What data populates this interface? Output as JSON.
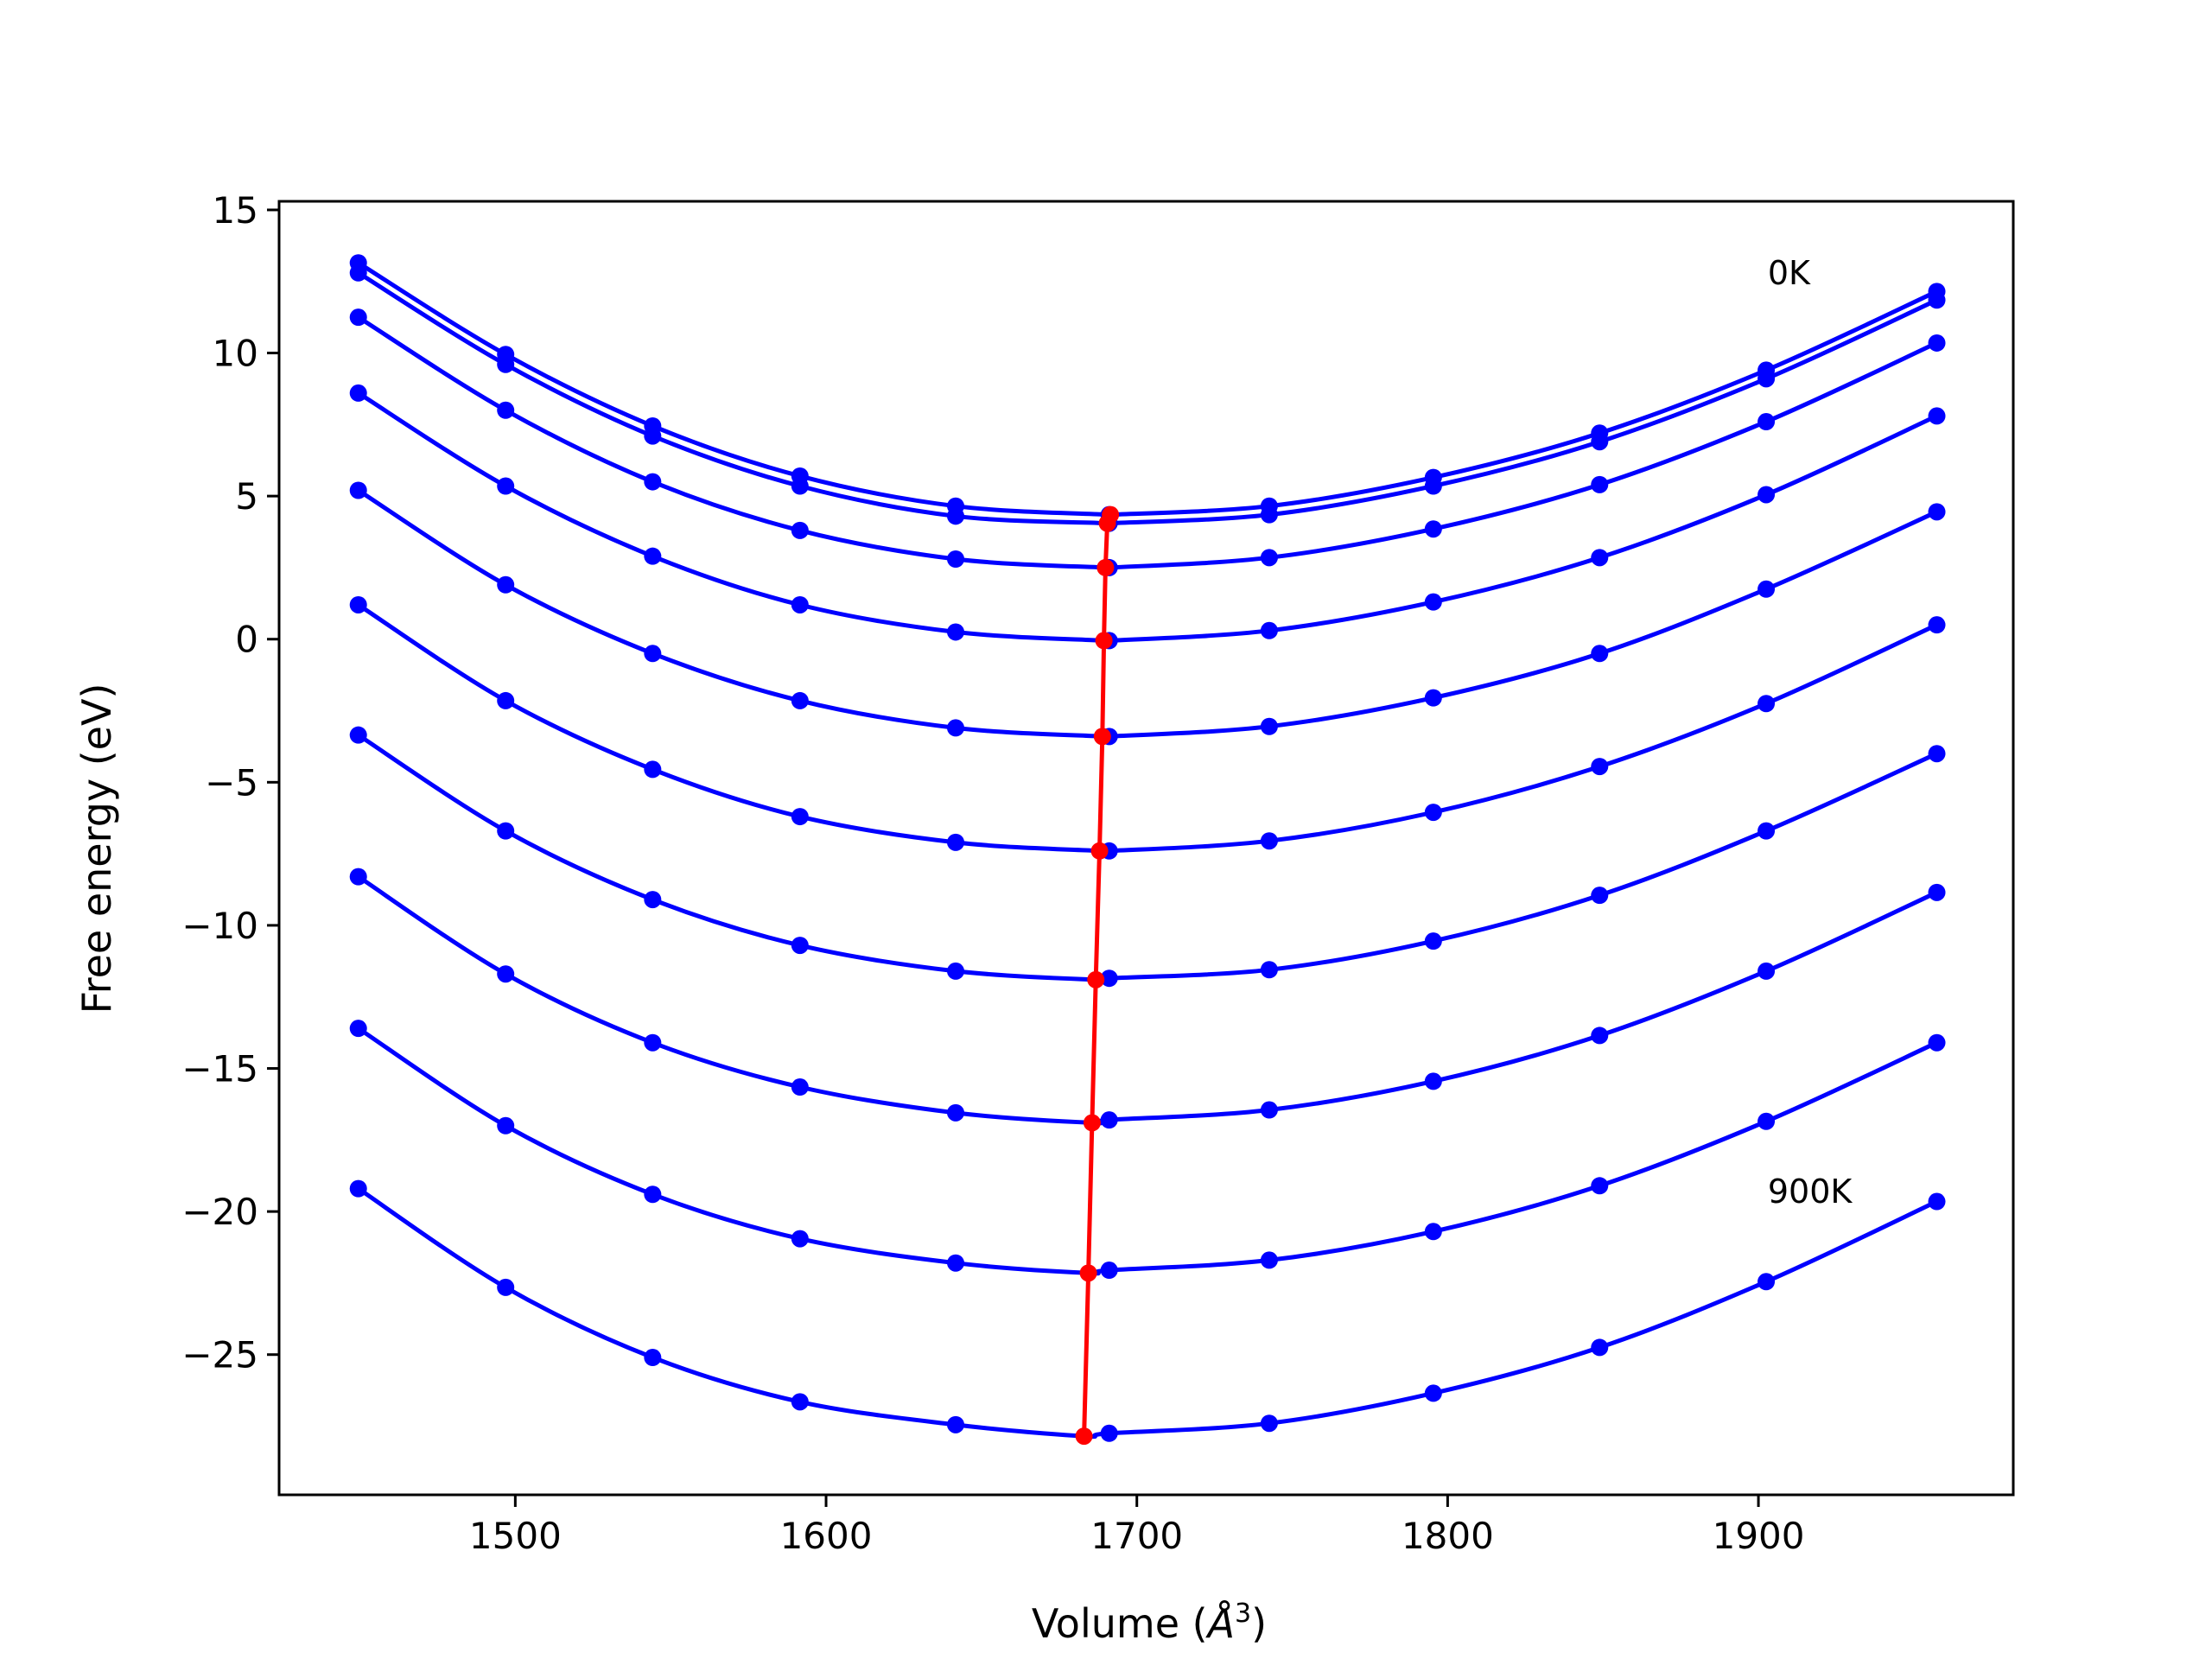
{
  "chart_data": {
    "type": "line",
    "xlabel": "Volume (",
    "xlabel_unit": "Å",
    "xlabel_exp": "3",
    "xlabel_close": ")",
    "ylabel": "Free energy (eV)",
    "xlim": [
      1424,
      1982
    ],
    "ylim": [
      -29.9,
      15.3
    ],
    "xticks": [
      1500,
      1600,
      1700,
      1800,
      1900
    ],
    "yticks": [
      15,
      10,
      5,
      0,
      -5,
      -10,
      -15,
      -20,
      -25
    ],
    "ytick_labels": [
      "15",
      "10",
      "5",
      "0",
      "−5",
      "−10",
      "−15",
      "−20",
      "−25"
    ],
    "grid": false,
    "legend": "none",
    "curve_color": "#0000ff",
    "min_line_color": "#ff0000",
    "annotations": [
      {
        "text": "0K",
        "x": 1903,
        "y": 12.4
      },
      {
        "text": "900K",
        "x": 1903,
        "y": -19.7
      }
    ],
    "volumes": [
      1449.5,
      1496.9,
      1544.2,
      1591.6,
      1641.7,
      1691.1,
      1742.6,
      1795.4,
      1848.9,
      1902.5,
      1957.4
    ],
    "series": [
      {
        "values": [
          13.15,
          9.95,
          7.45,
          5.7,
          4.65,
          4.35,
          4.65,
          5.65,
          7.2,
          9.4,
          12.15
        ],
        "min_volume": 1691.5,
        "min_energy": 4.35
      },
      {
        "values": [
          12.8,
          9.6,
          7.1,
          5.35,
          4.3,
          4.05,
          4.35,
          5.35,
          6.9,
          9.1,
          11.85
        ],
        "min_volume": 1690.5,
        "min_energy": 4.05
      },
      {
        "values": [
          11.25,
          8.0,
          5.5,
          3.8,
          2.8,
          2.5,
          2.85,
          3.85,
          5.4,
          7.6,
          10.35
        ],
        "min_volume": 1689.9,
        "min_energy": 2.5
      },
      {
        "values": [
          8.6,
          5.35,
          2.9,
          1.2,
          0.25,
          -0.05,
          0.3,
          1.3,
          2.85,
          5.05,
          7.8
        ],
        "min_volume": 1689.4,
        "min_energy": -0.05
      },
      {
        "values": [
          5.2,
          1.9,
          -0.5,
          -2.15,
          -3.1,
          -3.4,
          -3.05,
          -2.05,
          -0.5,
          1.75,
          4.45
        ],
        "min_volume": 1688.9,
        "min_energy": -3.4
      },
      {
        "values": [
          1.2,
          -2.15,
          -4.55,
          -6.2,
          -7.1,
          -7.4,
          -7.05,
          -6.05,
          -4.45,
          -2.25,
          0.5
        ],
        "min_volume": 1688.0,
        "min_energy": -7.4
      },
      {
        "values": [
          -3.35,
          -6.7,
          -9.1,
          -10.7,
          -11.6,
          -11.85,
          -11.55,
          -10.55,
          -8.95,
          -6.7,
          -4.0
        ],
        "min_volume": 1686.8,
        "min_energy": -11.9
      },
      {
        "values": [
          -8.3,
          -11.7,
          -14.1,
          -15.65,
          -16.55,
          -16.8,
          -16.45,
          -15.45,
          -13.85,
          -11.6,
          -8.85
        ],
        "min_volume": 1685.6,
        "min_energy": -16.9
      },
      {
        "values": [
          -13.6,
          -17.0,
          -19.4,
          -20.95,
          -21.8,
          -22.05,
          -21.7,
          -20.7,
          -19.1,
          -16.85,
          -14.1
        ],
        "min_volume": 1684.4,
        "min_energy": -22.15
      },
      {
        "values": [
          -19.2,
          -22.65,
          -25.1,
          -26.65,
          -27.45,
          -27.75,
          -27.4,
          -26.35,
          -24.75,
          -22.45,
          -19.65
        ],
        "min_volume": 1683.0,
        "min_energy": -27.85
      }
    ]
  }
}
